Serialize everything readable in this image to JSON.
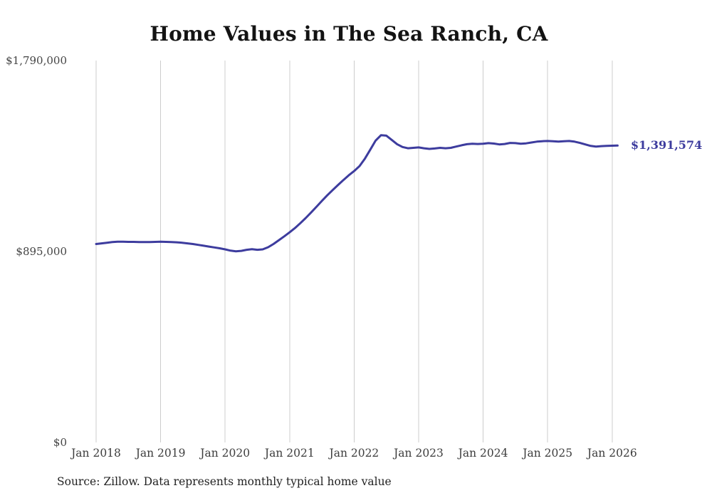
{
  "chart_data": {
    "type": "line",
    "title": "Home Values in The Sea Ranch, CA",
    "end_label": "$1,391,574",
    "current_value": 1391574,
    "source_note": "Source: Zillow. Data represents monthly typical home value",
    "line_color": "#3d3c9e",
    "grid_color": "#cccccc",
    "grid": "vertical-only",
    "legend": "none",
    "ylim": [
      0,
      1790000
    ],
    "y_ticks": [
      {
        "label": "$1,790,000",
        "value": 1790000
      },
      {
        "label": "$895,000",
        "value": 895000
      },
      {
        "label": "$0",
        "value": 0
      }
    ],
    "x_tick_labels": [
      "Jan 2018",
      "Jan 2019",
      "Jan 2020",
      "Jan 2021",
      "Jan 2022",
      "Jan 2023",
      "Jan 2024",
      "Jan 2025",
      "Jan 2026"
    ],
    "series": [
      {
        "name": "Monthly typical home value",
        "start_month": "2018-01",
        "values_monthly": [
          930000,
          933000,
          936000,
          939000,
          941000,
          941000,
          940000,
          940000,
          939000,
          939000,
          939000,
          940000,
          941000,
          940000,
          939000,
          938000,
          936000,
          933000,
          930000,
          926000,
          922000,
          918000,
          914000,
          910000,
          905000,
          899000,
          896000,
          898000,
          903000,
          906000,
          903000,
          905000,
          915000,
          930000,
          948000,
          966000,
          985000,
          1005000,
          1028000,
          1052000,
          1078000,
          1105000,
          1132000,
          1158000,
          1183000,
          1207000,
          1230000,
          1252000,
          1272000,
          1295000,
          1330000,
          1372000,
          1415000,
          1440000,
          1438000,
          1418000,
          1398000,
          1385000,
          1379000,
          1381000,
          1383000,
          1379000,
          1376000,
          1378000,
          1381000,
          1379000,
          1381000,
          1387000,
          1393000,
          1398000,
          1400000,
          1399000,
          1400000,
          1403000,
          1401000,
          1397000,
          1399000,
          1404000,
          1403000,
          1400000,
          1402000,
          1406000,
          1410000,
          1412000,
          1413000,
          1412000,
          1410000,
          1412000,
          1413000,
          1410000,
          1404000,
          1397000,
          1390000,
          1387000,
          1389000,
          1390000,
          1391000,
          1391574
        ]
      }
    ]
  }
}
